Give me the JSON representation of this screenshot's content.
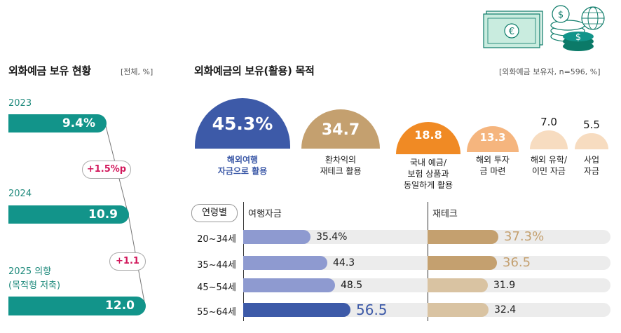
{
  "left": {
    "title": "외화예금 보유 현황",
    "note": "[전체, %]",
    "rows": [
      {
        "year": "2023",
        "value": "9.4%"
      },
      {
        "year": "2024",
        "value": "10.9"
      },
      {
        "year": "2025 의향",
        "sub": "(목적형 저축)",
        "value": "12.0"
      }
    ],
    "diffs": [
      "+1.5%p",
      "+1.1"
    ]
  },
  "right": {
    "title": "외화예금의 보유(활용) 목적",
    "note": "[외화예금 보유자, n=596, %]"
  },
  "colors": {
    "teal": "#12948a",
    "navy": "#3d5aa8",
    "tan": "#c4a06f",
    "orange": "#f08a24",
    "peach": "#f5b57e",
    "cream": "#f7dcc0",
    "pink": "#d2195c"
  },
  "chart_data": [
    {
      "type": "bar",
      "title": "외화예금 보유 현황",
      "categories": [
        "2023",
        "2024",
        "2025 의향 (목적형 저축)"
      ],
      "values": [
        9.4,
        10.9,
        12.0
      ],
      "unit": "%"
    },
    {
      "type": "bar",
      "title": "외화예금의 보유(활용) 목적",
      "categories": [
        "해외여행 자금으로 활용",
        "환차익의 재테크 활용",
        "국내 예금/ 보험 상품과 동일하게 활용",
        "해외 투자 금 마련",
        "해외 유학/ 이민 자금",
        "사업 자금"
      ],
      "values": [
        45.3,
        34.7,
        18.8,
        13.3,
        7.0,
        5.5
      ],
      "labels": [
        "45.3%",
        "34.7",
        "18.8",
        "13.3",
        "7.0",
        "5.5"
      ]
    },
    {
      "type": "bar",
      "title": "연령별",
      "categories": [
        "20~34세",
        "35~44세",
        "45~54세",
        "55~64세"
      ],
      "series": [
        {
          "name": "여행자금",
          "values": [
            35.4,
            44.3,
            48.5,
            56.5
          ],
          "labels": [
            "35.4%",
            "44.3",
            "48.5",
            "56.5"
          ]
        },
        {
          "name": "재테크",
          "values": [
            37.3,
            36.5,
            31.9,
            32.4
          ],
          "labels": [
            "37.3%",
            "36.5",
            "31.9",
            "32.4"
          ]
        }
      ]
    }
  ]
}
